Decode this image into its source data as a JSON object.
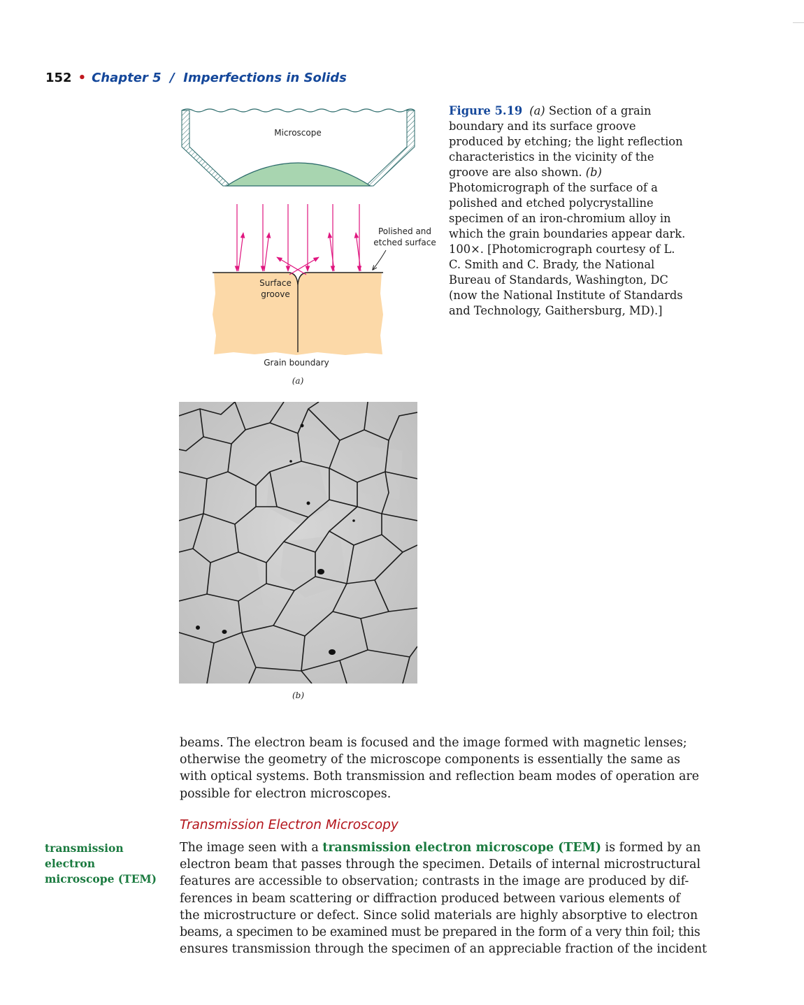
{
  "running_head": {
    "page_number": "152",
    "bullet": "•",
    "chapter": "Chapter 5  /  Imperfections in Solids"
  },
  "figure_a": {
    "microscope_label": "Microscope",
    "polished_line1": "Polished and",
    "polished_line2": "etched surface",
    "groove_line1": "Surface",
    "groove_line2": "groove",
    "grain_boundary_label": "Grain boundary",
    "panel_label": "(a)"
  },
  "caption": {
    "figure_label": "Figure 5.19",
    "panel_a": "(a)",
    "text_1": " Section of a grain boundary and its surface groove produced by etching; the light reflection characteristics in the vicinity of the groove are also shown. ",
    "panel_b": "(b)",
    "text_2": " Photomicrograph of the surface of a polished and etched polycrystalline specimen of an iron-chromium alloy in which the grain boundaries appear dark. 100×. [Photomicrograph courtesy of L. C. Smith and C. Brady, the National Bureau of Standards, Washington, DC (now the National Institute of Standards and Technology, Gaithersburg, MD).]"
  },
  "figure_b": {
    "panel_label": "(b)"
  },
  "paragraph_1": {
    "lines": [
      "beams. The electron beam is focused and the image formed with magnetic lenses;",
      "otherwise the geometry of the microscope components is essentially the same as",
      "with optical systems. Both transmission and reflection beam modes of operation are",
      "possible for electron microscopes."
    ]
  },
  "section_heading": "Transmission Electron Microscopy",
  "margin_term": {
    "line1": "transmission electron",
    "line2": "microscope (TEM)"
  },
  "paragraph_2": {
    "line1_pre": "The image seen with a ",
    "line1_term": "transmission electron microscope (TEM)",
    "line1_post": " is formed by an",
    "lines": [
      "electron beam that passes through the specimen. Details of internal microstructural",
      "features are accessible to observation; contrasts in the image are produced by dif-",
      "ferences in beam scattering or diffraction produced between various elements of",
      "the microstructure or defect. Since solid materials are highly absorptive to electron",
      "beams, a specimen to be examined must be prepared in the form of a very thin foil; this",
      "ensures transmission through the specimen of an appreciable fraction of the incident"
    ]
  },
  "colors": {
    "chapter_blue": "#14479a",
    "bullet_red": "#c0181e",
    "term_green": "#1a7a3f",
    "heading_red": "#b3151c",
    "arrow_magenta": "#e0157f",
    "lens_green": "#a8d5b0",
    "specimen_tan": "#fcd9a8"
  }
}
